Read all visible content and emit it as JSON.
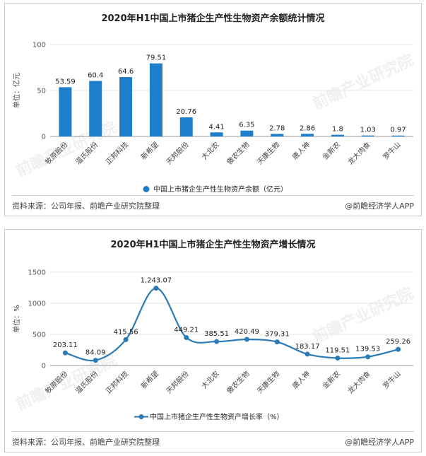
{
  "chart_data": [
    {
      "type": "bar",
      "title": "2020年H1中国上市猪企生产性生物资产余额统计情况",
      "ylabel": "单位：亿元",
      "categories": [
        "牧原股份",
        "温氏股份",
        "正邦科技",
        "新希望",
        "天邦股份",
        "大北农",
        "傲农生物",
        "天康生物",
        "唐人神",
        "金新农",
        "龙大肉食",
        "罗牛山"
      ],
      "series": [
        {
          "name": "中国上市猪企生产性生物资产余额（亿元）",
          "values": [
            53.59,
            60.4,
            64.6,
            79.51,
            20.76,
            4.41,
            6.35,
            2.78,
            2.86,
            1.8,
            1.03,
            0.97
          ]
        }
      ],
      "value_labels": [
        "53.59",
        "60.4",
        "64.6",
        "79.51",
        "20.76",
        "4.41",
        "6.35",
        "2.78",
        "2.86",
        "1.8",
        "1.03",
        "0.97"
      ],
      "ylim": [
        0,
        100
      ],
      "yticks": [
        0,
        50,
        100
      ],
      "legend": "bottom",
      "color": "#1f7ec9"
    },
    {
      "type": "line",
      "title": "2020年H1中国上市猪企生产性生物资产增长情况",
      "ylabel": "单位：%",
      "categories": [
        "牧原股份",
        "温氏股份",
        "正邦科技",
        "新希望",
        "天邦股份",
        "大北农",
        "傲农生物",
        "天康生物",
        "唐人神",
        "金新农",
        "龙大肉食",
        "罗牛山"
      ],
      "series": [
        {
          "name": "中国上市猪企生产性生物资产增长率（%）",
          "values": [
            203.11,
            84.09,
            415.56,
            1243.07,
            449.21,
            385.51,
            420.49,
            379.31,
            183.17,
            119.51,
            139.53,
            259.26
          ]
        }
      ],
      "value_labels": [
        "203.11",
        "84.09",
        "415.56",
        "1,243.07",
        "449.21",
        "385.51",
        "420.49",
        "379.31",
        "183.17",
        "119.51",
        "139.53",
        "259.26"
      ],
      "ylim": [
        0,
        1500
      ],
      "yticks": [
        0,
        500,
        1000,
        1500
      ],
      "legend": "bottom",
      "color": "#2a7ab5"
    }
  ],
  "source_left": "资料来源：公司年报、前瞻产业研究院整理",
  "source_right": "@前瞻经济学人APP"
}
